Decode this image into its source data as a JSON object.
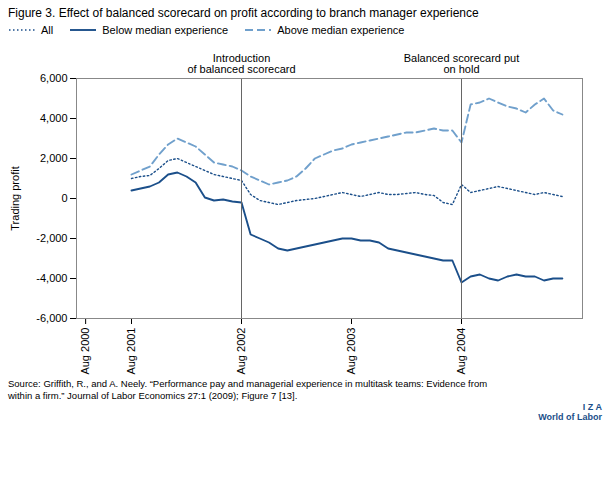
{
  "chart_data": {
    "type": "line",
    "title": "Figure 3. Effect of balanced scorecard on profit according to branch manager experience",
    "ylabel": "Trading profit",
    "caption": "Source: Griffith, R., and A. Neely. “Performance pay and managerial experience in multitask teams: Evidence from\nwithin a firm.” Journal of Labor Economics 27:1 (2009); Figure 7 [13].",
    "credit": "I Z A\nWorld of Labor",
    "x": [
      2001.0,
      2001.083,
      2001.167,
      2001.25,
      2001.333,
      2001.417,
      2001.5,
      2001.583,
      2001.667,
      2001.75,
      2001.833,
      2001.917,
      2002.0,
      2002.083,
      2002.167,
      2002.25,
      2002.333,
      2002.417,
      2002.5,
      2002.583,
      2002.667,
      2002.75,
      2002.833,
      2002.917,
      2003.0,
      2003.083,
      2003.167,
      2003.25,
      2003.333,
      2003.417,
      2003.5,
      2003.583,
      2003.667,
      2003.75,
      2003.833,
      2003.917,
      2004.0,
      2004.083,
      2004.167,
      2004.25,
      2004.333,
      2004.417,
      2004.5,
      2004.583,
      2004.667,
      2004.75,
      2004.833,
      2004.917
    ],
    "series": [
      {
        "name": "All",
        "color": "#1B4F8A",
        "line_style": "dotted",
        "values": [
          1000,
          1100,
          1150,
          1500,
          1900,
          2000,
          1800,
          1600,
          1400,
          1200,
          1100,
          1000,
          900,
          200,
          -100,
          -200,
          -300,
          -200,
          -100,
          -50,
          0,
          100,
          200,
          300,
          200,
          100,
          200,
          300,
          200,
          200,
          250,
          300,
          200,
          150,
          -200,
          -300,
          700,
          300,
          400,
          500,
          600,
          500,
          400,
          300,
          200,
          300,
          200,
          100
        ]
      },
      {
        "name": "Below median experience",
        "color": "#1B4F8A",
        "line_style": "solid",
        "values": [
          400,
          500,
          600,
          800,
          1200,
          1300,
          1100,
          800,
          50,
          -100,
          -50,
          -150,
          -200,
          -1800,
          -2000,
          -2200,
          -2500,
          -2600,
          -2500,
          -2400,
          -2300,
          -2200,
          -2100,
          -2000,
          -2000,
          -2100,
          -2100,
          -2200,
          -2500,
          -2600,
          -2700,
          -2800,
          -2900,
          -3000,
          -3100,
          -3100,
          -4200,
          -3900,
          -3800,
          -4000,
          -4100,
          -3900,
          -3800,
          -3900,
          -3900,
          -4100,
          -4000,
          -4000
        ]
      },
      {
        "name": "Above median experience",
        "color": "#70A0CC",
        "line_style": "dashed",
        "values": [
          1200,
          1400,
          1600,
          2200,
          2700,
          3000,
          2800,
          2600,
          2200,
          1800,
          1700,
          1600,
          1400,
          1100,
          900,
          700,
          800,
          900,
          1100,
          1500,
          2000,
          2200,
          2400,
          2500,
          2700,
          2800,
          2900,
          3000,
          3100,
          3200,
          3300,
          3300,
          3400,
          3500,
          3400,
          3400,
          2800,
          4700,
          4800,
          5000,
          4800,
          4600,
          4500,
          4300,
          4700,
          5000,
          4400,
          4200
        ]
      }
    ],
    "annotations": [
      {
        "text": "Introduction\nof balanced scorecard",
        "x": 2002.0
      },
      {
        "text": "Balanced scorecard put\non hold",
        "x": 2004.0
      }
    ],
    "xlim": [
      2000.5,
      2005.1
    ],
    "xticks": [
      {
        "value": 2000.583,
        "label": "Aug 2000"
      },
      {
        "value": 2001.0,
        "label": "Aug 2001"
      },
      {
        "value": 2002.0,
        "label": "Aug 2002"
      },
      {
        "value": 2003.0,
        "label": "Aug 2003"
      },
      {
        "value": 2004.0,
        "label": "Aug 2004"
      }
    ],
    "ylim": [
      -6000,
      6000
    ],
    "yticks": [
      {
        "value": -6000,
        "label": "-6,000"
      },
      {
        "value": -4000,
        "label": "-4,000"
      },
      {
        "value": -2000,
        "label": "-2,000"
      },
      0,
      {
        "value": 2000,
        "label": "2,000"
      },
      {
        "value": 4000,
        "label": "4,000"
      },
      {
        "value": 6000,
        "label": "6,000"
      }
    ],
    "grid": false,
    "legend": "top-left"
  }
}
